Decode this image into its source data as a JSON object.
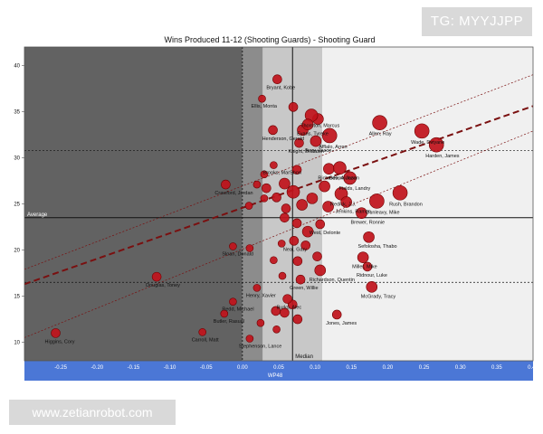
{
  "chart_data": {
    "type": "scatter",
    "title": "Wins Produced 11-12 (Shooting Guards) - Shooting Guard",
    "xlabel": "WP48",
    "ylabel": "",
    "xlim": [
      -0.3,
      0.4
    ],
    "ylim": [
      8,
      42
    ],
    "x_ticks": [
      -0.25,
      -0.2,
      -0.15,
      -0.1,
      -0.05,
      0.0,
      0.05,
      0.1,
      0.15,
      0.2,
      0.25,
      0.3,
      0.35,
      0.4
    ],
    "x_tick_labels": [
      "-0.25",
      "-0.20",
      "-0.15",
      "-0.10",
      "-0.05",
      "0.00",
      "0.05",
      "0.10",
      "0.15",
      "0.20",
      "0.25",
      "0.30",
      "0.35",
      "0.40"
    ],
    "y_ticks": [
      10,
      15,
      20,
      25,
      30,
      35,
      40
    ],
    "y_tick_labels": [
      "10",
      "15",
      "20",
      "25",
      "30",
      "35",
      "40"
    ],
    "reference": {
      "median_x": 0.069,
      "median_label": "Median",
      "average_y": 23.5,
      "average_label": "Average",
      "upper_y": 30.8,
      "lower_y": 16.5,
      "zero_x": 0.0,
      "bands": [
        {
          "from": 0.0,
          "to": 0.028,
          "color": "#8c8c8c"
        },
        {
          "from": 0.028,
          "to": 0.11,
          "color": "#c8c8c8"
        },
        {
          "from": 0.11,
          "to": 0.4,
          "color": "#f0f0f0"
        }
      ],
      "left_color": "#626262"
    },
    "trend": {
      "main": [
        [
          -0.3,
          16.3
        ],
        [
          0.4,
          35.6
        ]
      ],
      "upper": [
        [
          -0.3,
          17.9
        ],
        [
          0.4,
          39.0
        ]
      ],
      "lower": [
        [
          -0.3,
          10.5
        ],
        [
          0.4,
          32.9
        ]
      ]
    },
    "points": [
      {
        "label": "Bryant, Kobe",
        "x": 0.048,
        "y": 38.5,
        "r": 5
      },
      {
        "label": "Ellis, Monta",
        "x": 0.027,
        "y": 36.4,
        "r": 4
      },
      {
        "label": "Thornton, Marcus",
        "x": 0.095,
        "y": 34.6,
        "r": 7
      },
      {
        "label": "Evans, Tyreke",
        "x": 0.09,
        "y": 33.6,
        "r": 6
      },
      {
        "label": "Afflalo, Arron",
        "x": 0.12,
        "y": 32.4,
        "r": 8
      },
      {
        "label": "Allen, Ray",
        "x": 0.189,
        "y": 33.8,
        "r": 8
      },
      {
        "label": "Wade, Dwyane",
        "x": 0.247,
        "y": 32.9,
        "r": 8
      },
      {
        "label": "Harden, James",
        "x": 0.267,
        "y": 31.4,
        "r": 8
      },
      {
        "label": "Henderson, Gerald",
        "x": 0.042,
        "y": 33.0,
        "r": 5
      },
      {
        "label": "Knight, Brandon",
        "x": 0.078,
        "y": 31.6,
        "r": 5
      },
      {
        "label": "Terry, Jason",
        "x": 0.101,
        "y": 31.8,
        "r": 6
      },
      {
        "label": "Brooks, MarShon",
        "x": 0.043,
        "y": 29.2,
        "r": 4
      },
      {
        "label": "Richardson, Jason",
        "x": 0.119,
        "y": 28.8,
        "r": 6
      },
      {
        "label": "Gee, Alonzo",
        "x": 0.134,
        "y": 28.9,
        "r": 7
      },
      {
        "label": "Fields, Landry",
        "x": 0.148,
        "y": 27.8,
        "r": 7
      },
      {
        "label": "Crawford, Jordan",
        "x": -0.023,
        "y": 27.1,
        "r": 5
      },
      {
        "label": "Redick, J.J.",
        "x": 0.136,
        "y": 26.1,
        "r": 7
      },
      {
        "label": "Jenkins, Ramon",
        "x": 0.143,
        "y": 25.2,
        "r": 6
      },
      {
        "label": "Dunleavy, Mike",
        "x": 0.185,
        "y": 25.3,
        "r": 8
      },
      {
        "label": "Rush, Brandon",
        "x": 0.217,
        "y": 26.2,
        "r": 8
      },
      {
        "label": "Brewer, Ronnie",
        "x": 0.164,
        "y": 24.0,
        "r": 6
      },
      {
        "label": "West, Delonte",
        "x": 0.107,
        "y": 22.8,
        "r": 5
      },
      {
        "label": "Neal, Gary",
        "x": 0.071,
        "y": 21.0,
        "r": 5
      },
      {
        "label": "Sefolosha, Thabo",
        "x": 0.174,
        "y": 21.4,
        "r": 6
      },
      {
        "label": "Sloan, Donald",
        "x": -0.013,
        "y": 20.4,
        "r": 4
      },
      {
        "label": "Miller, Mike",
        "x": 0.166,
        "y": 19.2,
        "r": 6
      },
      {
        "label": "Ridnour, Luke",
        "x": 0.172,
        "y": 18.2,
        "r": 5
      },
      {
        "label": "Richardson, Quentin",
        "x": 0.107,
        "y": 17.8,
        "r": 6
      },
      {
        "label": "Green, Willie",
        "x": 0.08,
        "y": 16.8,
        "r": 5
      },
      {
        "label": "Douglas, Toney",
        "x": -0.118,
        "y": 17.1,
        "r": 5
      },
      {
        "label": "Henry, Xavier",
        "x": 0.02,
        "y": 15.9,
        "r": 4
      },
      {
        "label": "Burks, Alec",
        "x": 0.062,
        "y": 14.7,
        "r": 5
      },
      {
        "label": "McGrady, Tracy",
        "x": 0.178,
        "y": 16.0,
        "r": 6
      },
      {
        "label": "Redd, Michael",
        "x": -0.013,
        "y": 14.4,
        "r": 4
      },
      {
        "label": "Jones, James",
        "x": 0.13,
        "y": 13.0,
        "r": 5
      },
      {
        "label": "Butler, Rasual",
        "x": -0.025,
        "y": 13.1,
        "r": 4
      },
      {
        "label": "Higgins, Cory",
        "x": -0.257,
        "y": 11.0,
        "r": 5
      },
      {
        "label": "Carroll, Matt",
        "x": -0.055,
        "y": 11.1,
        "r": 4
      },
      {
        "label": "Stephenson, Lance",
        "x": 0.01,
        "y": 10.4,
        "r": 4
      }
    ],
    "unlabeled_points": [
      [
        0.07,
        35.5,
        5
      ],
      [
        0.083,
        33.0,
        6
      ],
      [
        0.104,
        34.2,
        6
      ],
      [
        0.075,
        28.7,
        5
      ],
      [
        0.03,
        28.2,
        4
      ],
      [
        0.058,
        27.2,
        6
      ],
      [
        0.033,
        26.7,
        5
      ],
      [
        0.07,
        26.3,
        7
      ],
      [
        0.047,
        25.7,
        5
      ],
      [
        0.06,
        24.5,
        5
      ],
      [
        0.082,
        24.9,
        6
      ],
      [
        0.096,
        25.6,
        6
      ],
      [
        0.113,
        26.9,
        6
      ],
      [
        0.058,
        23.5,
        5
      ],
      [
        0.075,
        22.9,
        5
      ],
      [
        0.09,
        22.0,
        6
      ],
      [
        0.03,
        25.6,
        4
      ],
      [
        0.009,
        24.8,
        4
      ],
      [
        0.02,
        27.1,
        4
      ],
      [
        0.118,
        24.7,
        6
      ],
      [
        0.087,
        20.5,
        5
      ],
      [
        0.103,
        19.3,
        5
      ],
      [
        0.054,
        20.7,
        4
      ],
      [
        0.043,
        18.9,
        4
      ],
      [
        0.076,
        18.8,
        5
      ],
      [
        0.055,
        17.2,
        4
      ],
      [
        0.069,
        14.1,
        5
      ],
      [
        0.046,
        13.4,
        5
      ],
      [
        0.058,
        13.2,
        5
      ],
      [
        0.025,
        12.1,
        4
      ],
      [
        0.047,
        11.4,
        4
      ],
      [
        0.076,
        12.5,
        5
      ],
      [
        0.01,
        20.2,
        4
      ]
    ],
    "colors": {
      "point_fill": "#c0121b",
      "point_stroke": "#6e0000",
      "trend": "#7a1010",
      "axis_band": "#4b77d6",
      "axis_text": "#ffffff"
    },
    "grid": false,
    "legend": "none"
  }
}
